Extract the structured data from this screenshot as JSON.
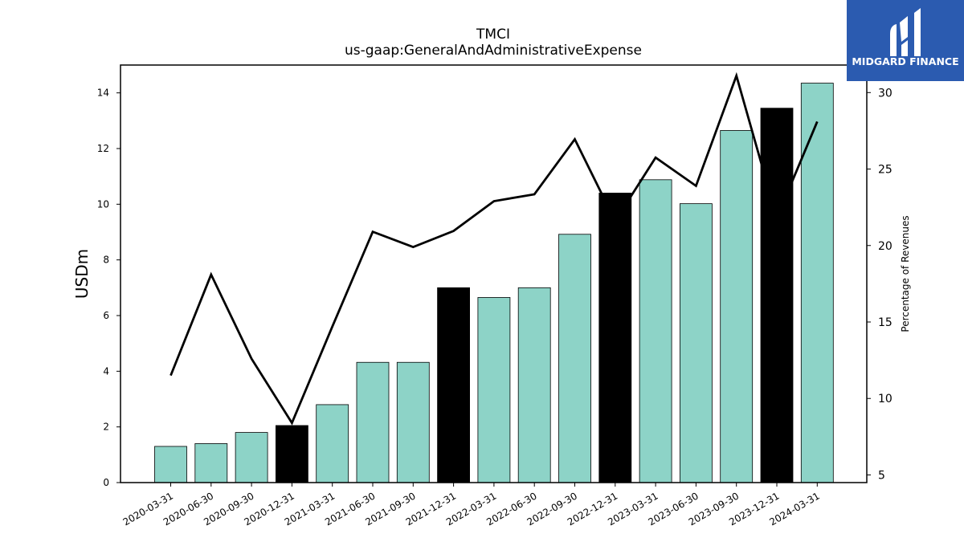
{
  "chart_data": {
    "type": "bar",
    "title": "TMCI",
    "subtitle": "us-gaap:GeneralAndAdministrativeExpense",
    "ylabel": "USDm",
    "ylabel_right": "Percentage of Revenues",
    "ylim": [
      0,
      15
    ],
    "ylim_right": [
      4.5,
      31.8
    ],
    "yticks": [
      0,
      2,
      4,
      6,
      8,
      10,
      12,
      14
    ],
    "yticks_right": [
      5,
      10,
      15,
      20,
      25,
      30
    ],
    "categories": [
      "2020-03-31",
      "2020-06-30",
      "2020-09-30",
      "2020-12-31",
      "2021-03-31",
      "2021-06-30",
      "2021-09-30",
      "2021-12-31",
      "2022-03-31",
      "2022-06-30",
      "2022-09-30",
      "2022-12-31",
      "2023-03-31",
      "2023-06-30",
      "2023-09-30",
      "2023-12-31",
      "2024-03-31"
    ],
    "values": [
      1.3,
      1.4,
      1.8,
      2.05,
      2.8,
      4.32,
      4.32,
      7.0,
      6.65,
      7.0,
      8.92,
      10.4,
      10.88,
      10.02,
      12.65,
      13.45,
      14.35
    ],
    "bar_colors": [
      "#8dd3c7",
      "#8dd3c7",
      "#8dd3c7",
      "#000000",
      "#8dd3c7",
      "#8dd3c7",
      "#8dd3c7",
      "#000000",
      "#8dd3c7",
      "#8dd3c7",
      "#8dd3c7",
      "#000000",
      "#8dd3c7",
      "#8dd3c7",
      "#8dd3c7",
      "#000000",
      "#8dd3c7"
    ],
    "line_values": [
      11.5,
      18.1,
      12.6,
      8.4,
      14.7,
      20.9,
      19.9,
      20.95,
      22.9,
      23.35,
      26.95,
      21.6,
      25.75,
      23.9,
      31.1,
      21.8,
      28.1
    ],
    "line_color": "#000000",
    "grid": false
  },
  "logo": {
    "text": "MIDGARD FINANCE",
    "background": "#2b5bb0"
  }
}
